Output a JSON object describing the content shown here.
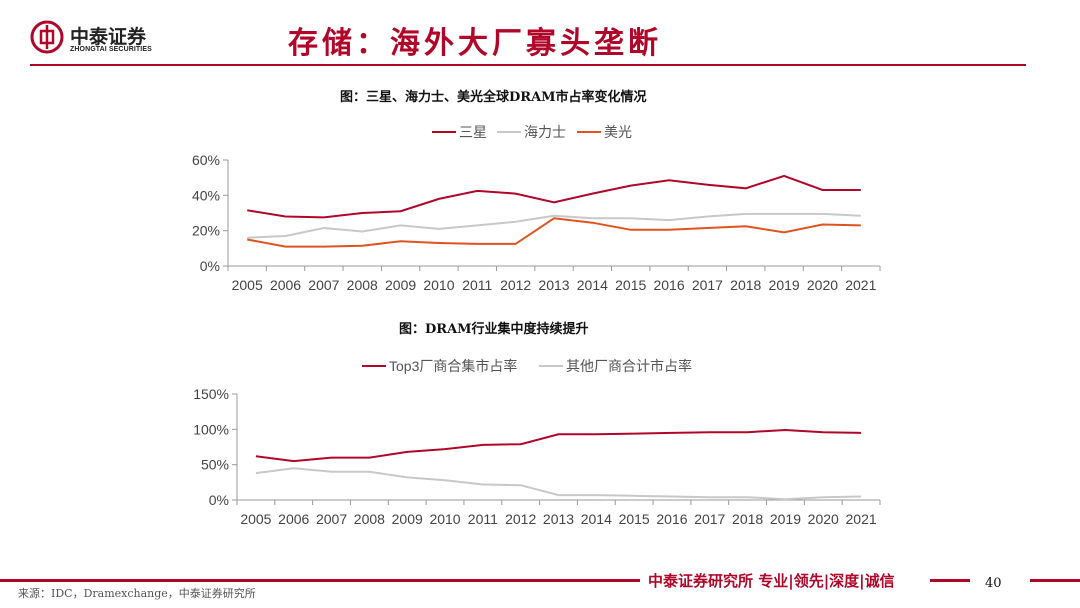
{
  "header": {
    "logo_cn": "中泰证券",
    "logo_en": "ZHONGTAI SECURITIES",
    "page_title": "存储：海外大厂寡头垄断"
  },
  "colors": {
    "accent": "#b0062a",
    "series_red": "#b0062a",
    "series_gray": "#c8c8c8",
    "series_orange": "#e0531f"
  },
  "footer": {
    "slogan": "中泰证券研究所 专业|领先|深度|诚信",
    "page_number": "40",
    "source": "来源：IDC，Dramexchange，中泰证券研究所"
  },
  "chart_data": [
    {
      "type": "line",
      "title": "图：三星、海力士、美光全球DRAM市占率变化情况",
      "categories": [
        "2005",
        "2006",
        "2007",
        "2008",
        "2009",
        "2010",
        "2011",
        "2012",
        "2013",
        "2014",
        "2015",
        "2016",
        "2017",
        "2018",
        "2019",
        "2020",
        "2021"
      ],
      "y_ticks": [
        "0%",
        "20%",
        "40%",
        "60%"
      ],
      "ylim": [
        0,
        60
      ],
      "series": [
        {
          "name": "三星",
          "color": "#b0062a",
          "values": [
            31.5,
            28,
            27.5,
            30,
            31,
            38,
            42.5,
            41,
            36,
            41,
            45.5,
            48.5,
            46,
            44,
            51,
            43,
            43
          ]
        },
        {
          "name": "海力士",
          "color": "#c8c8c8",
          "values": [
            16,
            17,
            21.5,
            19.5,
            23,
            21,
            23,
            25,
            28.5,
            27,
            27,
            26,
            28,
            29.5,
            29.5,
            29.5,
            28.5
          ]
        },
        {
          "name": "美光",
          "color": "#e0531f",
          "values": [
            15,
            11,
            11,
            11.5,
            14,
            13,
            12.5,
            12.5,
            27,
            24.5,
            20.5,
            20.5,
            21.5,
            22.5,
            19,
            23.5,
            23
          ]
        }
      ]
    },
    {
      "type": "line",
      "title": "图：DRAM行业集中度持续提升",
      "categories": [
        "2005",
        "2006",
        "2007",
        "2008",
        "2009",
        "2010",
        "2011",
        "2012",
        "2013",
        "2014",
        "2015",
        "2016",
        "2017",
        "2018",
        "2019",
        "2020",
        "2021"
      ],
      "y_ticks": [
        "0%",
        "50%",
        "100%",
        "150%"
      ],
      "ylim": [
        0,
        150
      ],
      "series": [
        {
          "name": "Top3厂商合集市占率",
          "color": "#b0062a",
          "values": [
            62,
            55,
            60,
            60,
            68,
            72,
            78,
            79,
            93,
            93,
            94,
            95,
            96,
            96,
            99,
            96,
            95
          ]
        },
        {
          "name": "其他厂商合计市占率",
          "color": "#c8c8c8",
          "values": [
            38,
            45,
            40,
            40,
            32,
            28,
            22,
            21,
            7,
            7,
            6,
            5,
            4,
            4,
            1,
            4,
            5
          ]
        }
      ]
    }
  ]
}
